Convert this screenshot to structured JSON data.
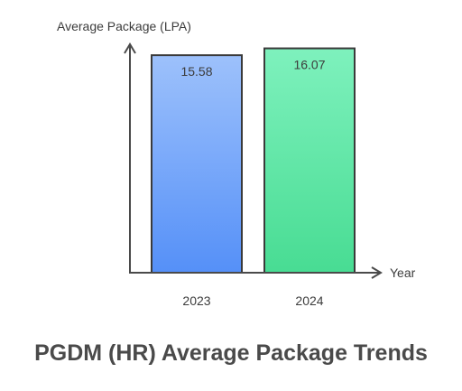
{
  "chart_data": {
    "type": "bar",
    "title": "PGDM (HR) Average Package Trends",
    "xlabel": "Year",
    "ylabel": "Average Package (LPA)",
    "categories": [
      "2023",
      "2024"
    ],
    "values": [
      15.58,
      16.07
    ],
    "data_labels": [
      "15.58",
      "16.07"
    ],
    "ylim": [
      0,
      16.3
    ],
    "grid": false,
    "legend": "none",
    "colors": {
      "bar_2023_top": "#9dc1fb",
      "bar_2023_bottom": "#5590f8",
      "bar_2024_top": "#7ef1bd",
      "bar_2024_bottom": "#48dc93",
      "axis": "#4a4a4a",
      "bar_outline": "#3a3a3a",
      "text": "#3c3c3c"
    }
  }
}
